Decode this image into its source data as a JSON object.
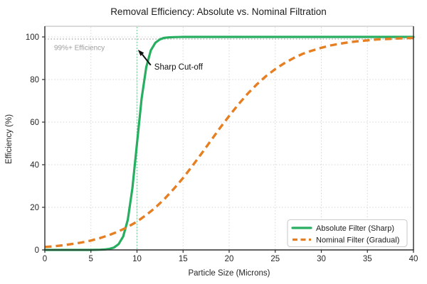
{
  "chart_data": {
    "type": "line",
    "title": "Removal Efficiency: Absolute vs. Nominal Filtration",
    "xlabel": "Particle Size (Microns)",
    "ylabel": "Efficiency (%)",
    "xlim": [
      0,
      40
    ],
    "ylim": [
      0,
      105
    ],
    "xticks": [
      0,
      5,
      10,
      15,
      20,
      25,
      30,
      35,
      40
    ],
    "yticks": [
      0,
      20,
      40,
      60,
      80,
      100
    ],
    "grid": true,
    "legend_position": "lower right",
    "series": [
      {
        "name": "Absolute Filter (Sharp)",
        "color": "#27ae60",
        "line_style": "solid",
        "line_width": 3.2,
        "x": [
          0,
          1,
          2,
          3,
          4,
          5,
          6,
          6.5,
          7,
          7.5,
          8,
          8.5,
          9,
          9.5,
          10,
          10.5,
          11,
          11.5,
          12,
          12.5,
          13,
          13.5,
          14,
          15,
          16,
          18,
          20,
          24,
          28,
          32,
          36,
          40
        ],
        "y": [
          0,
          0,
          0,
          0,
          0,
          0,
          0.1,
          0.2,
          0.5,
          1.1,
          2.7,
          6.3,
          14.2,
          28.9,
          50,
          71.1,
          85.8,
          93.7,
          97.3,
          98.9,
          99.6,
          99.8,
          99.9,
          100,
          100,
          100,
          100,
          100,
          100,
          100,
          100,
          100
        ]
      },
      {
        "name": "Nominal Filter (Gradual)",
        "color": "#e67e22",
        "line_style": "dashed",
        "line_width": 3.4,
        "x": [
          0,
          1,
          2,
          3,
          4,
          5,
          6,
          7,
          8,
          9,
          10,
          11,
          12,
          13,
          14,
          15,
          16,
          17,
          18,
          19,
          20,
          21,
          22,
          23,
          24,
          25,
          26,
          27,
          28,
          29,
          30,
          31,
          32,
          33,
          34,
          35,
          36,
          37,
          38,
          39,
          40
        ],
        "y": [
          1.4,
          1.7,
          2.2,
          2.8,
          3.5,
          4.4,
          5.6,
          7.0,
          8.7,
          10.8,
          13.3,
          16.4,
          19.9,
          24.0,
          28.7,
          33.8,
          39.4,
          45.2,
          51.2,
          57.2,
          62.9,
          68.3,
          73.3,
          77.7,
          81.6,
          84.9,
          87.7,
          90.1,
          92.1,
          93.6,
          94.9,
          96.0,
          96.8,
          97.5,
          98.0,
          98.4,
          98.8,
          99.0,
          99.2,
          99.4,
          99.5
        ]
      }
    ],
    "reference_lines": [
      {
        "orientation": "horizontal",
        "value": 99,
        "color": "#a8a8a8",
        "style": "dotted",
        "label": "99%+ Efficiency",
        "label_color": "#9e9e9e",
        "label_xy": [
          1,
          95
        ]
      },
      {
        "orientation": "vertical",
        "value": 10,
        "color": "#7ccfa0",
        "style": "dotted"
      }
    ],
    "annotation": {
      "text": "Sharp Cut-off",
      "xy": [
        10.1,
        94
      ],
      "xytext": [
        11.8,
        86
      ],
      "color": "#111111"
    }
  }
}
